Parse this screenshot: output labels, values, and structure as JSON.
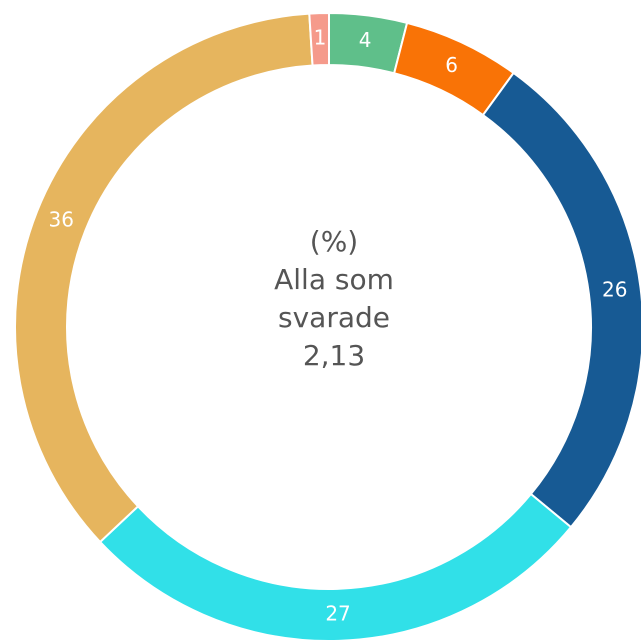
{
  "chart_data": {
    "type": "donut",
    "values": [
      4,
      6,
      26,
      27,
      36,
      1
    ],
    "colors": [
      "#5fbf8a",
      "#f97306",
      "#175a94",
      "#31e0e8",
      "#e6b55e",
      "#f59a8b"
    ],
    "center_text": [
      "(%)",
      "Alla som",
      "svarade",
      "2,13"
    ]
  }
}
